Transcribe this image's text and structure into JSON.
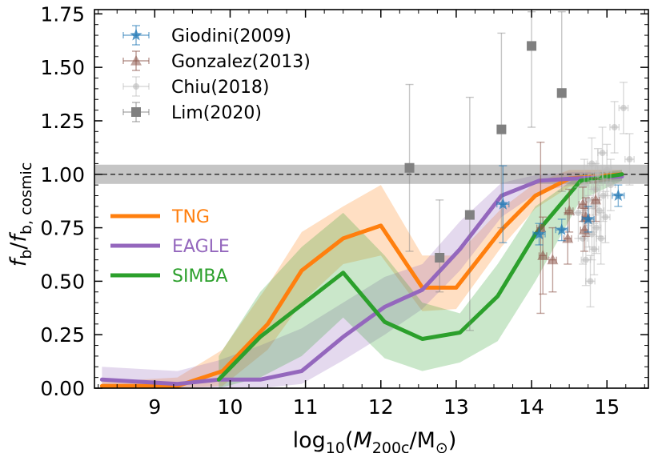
{
  "chart_data": {
    "type": "line",
    "title": "",
    "xlabel": "log10(M200c/M⊙)",
    "xlabel_parts": {
      "pre": "log",
      "sub1": "10",
      "open": "(",
      "M": "M",
      "sub2": "200c",
      "post": "/M",
      "sun": "⊙",
      "close": ")"
    },
    "ylabel": "fb/fb,cosmic",
    "ylabel_parts": {
      "f1": "f",
      "s1": "b",
      "slash": "/",
      "f2": "f",
      "s2": "b, cosmic"
    },
    "xlim": [
      8.2,
      15.55
    ],
    "ylim": [
      0.0,
      1.77
    ],
    "xticks": [
      9,
      10,
      11,
      12,
      13,
      14,
      15
    ],
    "xtick_labels": [
      "9",
      "10",
      "11",
      "12",
      "13",
      "14",
      "15"
    ],
    "yticks": [
      0.0,
      0.25,
      0.5,
      0.75,
      1.0,
      1.25,
      1.5,
      1.75
    ],
    "ytick_labels": [
      "0.00",
      "0.25",
      "0.50",
      "0.75",
      "1.00",
      "1.25",
      "1.50",
      "1.75"
    ],
    "reference_line": {
      "y": 1.0,
      "band": [
        0.955,
        1.045
      ],
      "style": "dashed"
    },
    "series": [
      {
        "name": "TNG",
        "color": "#ff7f0e",
        "x": [
          8.3,
          9.3,
          9.9,
          10.5,
          10.95,
          11.5,
          12.0,
          12.55,
          13.0,
          13.6,
          14.05,
          14.5,
          15.2
        ],
        "y": [
          0.01,
          0.01,
          0.08,
          0.3,
          0.55,
          0.7,
          0.76,
          0.47,
          0.47,
          0.74,
          0.9,
          0.98,
          1.0
        ],
        "lower": [
          0.0,
          0.0,
          0.01,
          0.18,
          0.4,
          0.58,
          0.62,
          0.36,
          0.37,
          0.66,
          0.84,
          0.94,
          0.98
        ],
        "upper": [
          0.03,
          0.05,
          0.18,
          0.48,
          0.73,
          0.85,
          0.95,
          0.62,
          0.62,
          0.84,
          0.96,
          1.02,
          1.02
        ]
      },
      {
        "name": "EAGLE",
        "color": "#9467bd",
        "x": [
          8.3,
          9.3,
          9.85,
          10.4,
          10.95,
          11.5,
          12.05,
          12.55,
          13.05,
          13.6,
          14.1,
          14.55,
          15.2
        ],
        "y": [
          0.04,
          0.02,
          0.04,
          0.04,
          0.08,
          0.24,
          0.38,
          0.46,
          0.65,
          0.9,
          0.97,
          0.98,
          0.99
        ],
        "lower": [
          0.01,
          0.0,
          0.0,
          0.0,
          0.02,
          0.13,
          0.25,
          0.37,
          0.55,
          0.8,
          0.92,
          0.95,
          0.97
        ],
        "upper": [
          0.1,
          0.08,
          0.13,
          0.2,
          0.28,
          0.4,
          0.52,
          0.58,
          0.78,
          0.96,
          1.0,
          1.01,
          1.01
        ]
      },
      {
        "name": "SIMBA",
        "color": "#2ca02c",
        "x": [
          9.85,
          10.4,
          10.95,
          11.5,
          12.05,
          12.55,
          13.05,
          13.55,
          14.05,
          14.65,
          15.2
        ],
        "y": [
          0.04,
          0.24,
          0.39,
          0.54,
          0.31,
          0.23,
          0.26,
          0.43,
          0.72,
          0.97,
          1.0
        ],
        "lower": [
          0.0,
          0.05,
          0.15,
          0.33,
          0.14,
          0.08,
          0.12,
          0.22,
          0.5,
          0.88,
          0.97
        ],
        "upper": [
          0.15,
          0.45,
          0.66,
          0.82,
          0.62,
          0.4,
          0.35,
          0.58,
          0.85,
          1.0,
          1.02
        ]
      }
    ],
    "observations": [
      {
        "name": "Giodini(2009)",
        "marker": "star",
        "color": "#1f77b4",
        "points": [
          {
            "x": 13.62,
            "y": 0.86,
            "xerr": 0.08,
            "yerr": 0.18
          },
          {
            "x": 14.1,
            "y": 0.72,
            "xerr": 0.08,
            "yerr": 0.05
          },
          {
            "x": 14.4,
            "y": 0.74,
            "xerr": 0.08,
            "yerr": 0.05
          },
          {
            "x": 14.75,
            "y": 0.79,
            "xerr": 0.08,
            "yerr": 0.06
          },
          {
            "x": 15.15,
            "y": 0.9,
            "xerr": 0.08,
            "yerr": 0.05
          }
        ]
      },
      {
        "name": "Gonzalez(2013)",
        "marker": "triangle",
        "color": "#8c564b",
        "points": [
          {
            "x": 14.12,
            "y": 0.75,
            "xerr": 0.05,
            "yerr": 0.4
          },
          {
            "x": 14.15,
            "y": 0.62,
            "xerr": 0.05,
            "yerr": 0.18
          },
          {
            "x": 14.28,
            "y": 0.6,
            "xerr": 0.05,
            "yerr": 0.15
          },
          {
            "x": 14.48,
            "y": 0.7,
            "xerr": 0.05,
            "yerr": 0.12
          },
          {
            "x": 14.5,
            "y": 0.83,
            "xerr": 0.05,
            "yerr": 0.1
          },
          {
            "x": 14.68,
            "y": 0.86,
            "xerr": 0.05,
            "yerr": 0.08
          },
          {
            "x": 14.72,
            "y": 0.8,
            "xerr": 0.05,
            "yerr": 0.09
          },
          {
            "x": 14.85,
            "y": 0.88,
            "xerr": 0.05,
            "yerr": 0.1
          },
          {
            "x": 14.7,
            "y": 0.74,
            "xerr": 0.05,
            "yerr": 0.1
          }
        ]
      },
      {
        "name": "Chiu(2018)",
        "marker": "circle",
        "color": "#bbbbbb",
        "points": [
          {
            "x": 14.62,
            "y": 0.82,
            "xerr": 0.06,
            "yerr": 0.12
          },
          {
            "x": 14.68,
            "y": 0.7,
            "xerr": 0.06,
            "yerr": 0.12
          },
          {
            "x": 14.7,
            "y": 0.95,
            "xerr": 0.06,
            "yerr": 0.12
          },
          {
            "x": 14.72,
            "y": 0.6,
            "xerr": 0.06,
            "yerr": 0.12
          },
          {
            "x": 14.75,
            "y": 0.88,
            "xerr": 0.06,
            "yerr": 0.12
          },
          {
            "x": 14.76,
            "y": 0.78,
            "xerr": 0.06,
            "yerr": 0.12
          },
          {
            "x": 14.78,
            "y": 0.5,
            "xerr": 0.06,
            "yerr": 0.12
          },
          {
            "x": 14.8,
            "y": 1.05,
            "xerr": 0.06,
            "yerr": 0.12
          },
          {
            "x": 14.8,
            "y": 0.72,
            "xerr": 0.06,
            "yerr": 0.12
          },
          {
            "x": 14.82,
            "y": 0.85,
            "xerr": 0.06,
            "yerr": 0.12
          },
          {
            "x": 14.83,
            "y": 0.65,
            "xerr": 0.06,
            "yerr": 0.12
          },
          {
            "x": 14.85,
            "y": 0.93,
            "xerr": 0.06,
            "yerr": 0.12
          },
          {
            "x": 14.86,
            "y": 0.75,
            "xerr": 0.06,
            "yerr": 0.12
          },
          {
            "x": 14.88,
            "y": 1.0,
            "xerr": 0.06,
            "yerr": 0.12
          },
          {
            "x": 14.9,
            "y": 0.83,
            "xerr": 0.06,
            "yerr": 0.12
          },
          {
            "x": 14.92,
            "y": 0.7,
            "xerr": 0.06,
            "yerr": 0.12
          },
          {
            "x": 14.94,
            "y": 1.1,
            "xerr": 0.06,
            "yerr": 0.12
          },
          {
            "x": 14.95,
            "y": 0.9,
            "xerr": 0.06,
            "yerr": 0.12
          },
          {
            "x": 14.98,
            "y": 0.8,
            "xerr": 0.06,
            "yerr": 0.12
          },
          {
            "x": 15.0,
            "y": 1.02,
            "xerr": 0.06,
            "yerr": 0.12
          },
          {
            "x": 15.05,
            "y": 0.95,
            "xerr": 0.06,
            "yerr": 0.12
          },
          {
            "x": 15.1,
            "y": 1.22,
            "xerr": 0.06,
            "yerr": 0.12
          },
          {
            "x": 15.22,
            "y": 1.31,
            "xerr": 0.06,
            "yerr": 0.12
          },
          {
            "x": 15.3,
            "y": 1.07,
            "xerr": 0.06,
            "yerr": 0.12
          }
        ]
      },
      {
        "name": "Lim(2020)",
        "marker": "square",
        "color": "#808080",
        "points": [
          {
            "x": 12.38,
            "y": 1.03,
            "lo": 0.64,
            "hi": 1.42
          },
          {
            "x": 12.78,
            "y": 0.61,
            "lo": 0.45,
            "hi": 0.88
          },
          {
            "x": 13.18,
            "y": 0.81,
            "lo": 0.27,
            "hi": 1.36
          },
          {
            "x": 13.6,
            "y": 1.21,
            "lo": 0.75,
            "hi": 1.66
          },
          {
            "x": 14.0,
            "y": 1.6,
            "lo": 1.22,
            "hi": 1.76
          },
          {
            "x": 14.4,
            "y": 1.38,
            "lo": 0.92,
            "hi": 1.76
          }
        ]
      }
    ],
    "legend": {
      "placement": "top-left",
      "entries": [
        "Giodini(2009)",
        "Gonzalez(2013)",
        "Chiu(2018)",
        "Lim(2020)"
      ]
    },
    "model_labels": {
      "placement": "middle-left",
      "entries": [
        "TNG",
        "EAGLE",
        "SIMBA"
      ]
    }
  }
}
